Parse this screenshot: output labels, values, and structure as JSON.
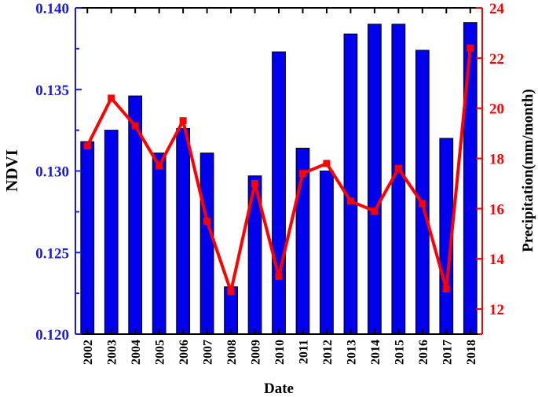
{
  "chart_data": {
    "type": "bar",
    "title": "",
    "categories": [
      "2002",
      "2003",
      "2004",
      "2005",
      "2006",
      "2007",
      "2008",
      "2009",
      "2010",
      "2011",
      "2012",
      "2013",
      "2014",
      "2015",
      "2016",
      "2017",
      "2018"
    ],
    "xlabel": "Date",
    "y_left": {
      "label": "NDVI",
      "range": [
        0.12,
        0.14
      ],
      "ticks": [
        "0.120",
        "0.125",
        "0.130",
        "0.135",
        "0.140"
      ],
      "color": "#1a1ae6"
    },
    "y_right": {
      "label": "Precipitation(mm/month)",
      "range": [
        11,
        24
      ],
      "ticks": [
        "12",
        "14",
        "16",
        "18",
        "20",
        "22",
        "24"
      ],
      "color": "#ff0000"
    },
    "series": [
      {
        "type": "bar",
        "axis": "left",
        "color": "#0000ee",
        "values": [
          0.1318,
          0.1325,
          0.1346,
          0.1311,
          0.1326,
          0.1311,
          0.1229,
          0.1297,
          0.1373,
          0.1314,
          0.13,
          0.1384,
          0.139,
          0.139,
          0.1374,
          0.132,
          0.1391
        ]
      },
      {
        "type": "line",
        "axis": "right",
        "color": "#ff0000",
        "marker": "square",
        "values": [
          18.5,
          20.4,
          19.3,
          17.7,
          19.5,
          15.5,
          12.7,
          17.0,
          13.3,
          17.4,
          17.8,
          16.3,
          15.9,
          17.6,
          16.2,
          12.8,
          22.4
        ]
      }
    ],
    "grid": false,
    "legend": "none"
  }
}
